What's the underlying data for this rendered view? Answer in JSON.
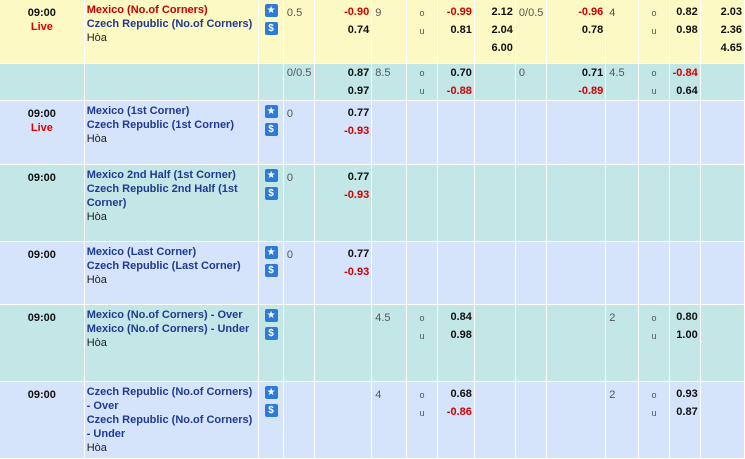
{
  "rows": [
    {
      "time": "09:00",
      "live": "Live",
      "home": "Mexico (No.of Corners)",
      "away": "Czech Republic (No.of Corners)",
      "draw": "Hòa",
      "a_hcp": "0.5",
      "a_home": "-0.90",
      "a_away": "0.74",
      "a_ou_line": "9",
      "a_over": "-0.99",
      "a_under": "0.81",
      "a_1x2": [
        "2.12",
        "2.04",
        "6.00"
      ],
      "b_hcp": "0/0.5",
      "b_home": "-0.96",
      "b_away": "0.78",
      "b_ou_line": "4",
      "b_over": "0.82",
      "b_under": "0.98",
      "b_1x2": [
        "2.03",
        "2.36",
        "4.65"
      ],
      "o_label": "o",
      "u_label": "u"
    },
    {
      "a_hcp": "0/0.5",
      "a_home": "0.87",
      "a_away": "0.97",
      "a_ou_line": "8.5",
      "a_over": "0.70",
      "a_under": "-0.88",
      "b_hcp": "0",
      "b_home": "0.71",
      "b_away": "-0.89",
      "b_ou_line": "4.5",
      "b_over": "-0.84",
      "b_under": "0.64",
      "o_label": "o",
      "u_label": "u"
    },
    {
      "time": "09:00",
      "live": "Live",
      "home": "Mexico (1st Corner)",
      "away": "Czech Republic (1st Corner)",
      "draw": "Hòa",
      "a_hcp": "0",
      "a_home": "0.77",
      "a_away": "-0.93"
    },
    {
      "time": "09:00",
      "home": "Mexico 2nd Half (1st Corner)",
      "away": "Czech Republic 2nd Half (1st Corner)",
      "draw": "Hòa",
      "a_hcp": "0",
      "a_home": "0.77",
      "a_away": "-0.93"
    },
    {
      "time": "09:00",
      "home": "Mexico (Last Corner)",
      "away": "Czech Republic (Last Corner)",
      "draw": "Hòa",
      "a_hcp": "0",
      "a_home": "0.77",
      "a_away": "-0.93"
    },
    {
      "time": "09:00",
      "home": "Mexico (No.of Corners) - Over",
      "away": "Mexico (No.of Corners) - Under",
      "draw": "Hòa",
      "a_ou_line": "4.5",
      "a_over": "0.84",
      "a_under": "0.98",
      "b_ou_line": "2",
      "b_over": "0.80",
      "b_under": "1.00",
      "o_label": "o",
      "u_label": "u"
    },
    {
      "time": "09:00",
      "home": "Czech Republic (No.of Corners) - Over",
      "away": "Czech Republic (No.of Corners) - Under",
      "draw": "Hòa",
      "a_ou_line": "4",
      "a_over": "0.68",
      "a_under": "-0.86",
      "b_ou_line": "2",
      "b_over": "0.93",
      "b_under": "0.87",
      "o_label": "o",
      "u_label": "u"
    }
  ],
  "icons": {
    "calendar": "calendar-icon",
    "favorite": "star-icon",
    "bet": "dollar-icon"
  },
  "colors": {
    "negative": "#d40000",
    "highlight": "#fdf9c4",
    "blue_row": "#d5e3fb",
    "teal_row": "#c3e6e6"
  }
}
